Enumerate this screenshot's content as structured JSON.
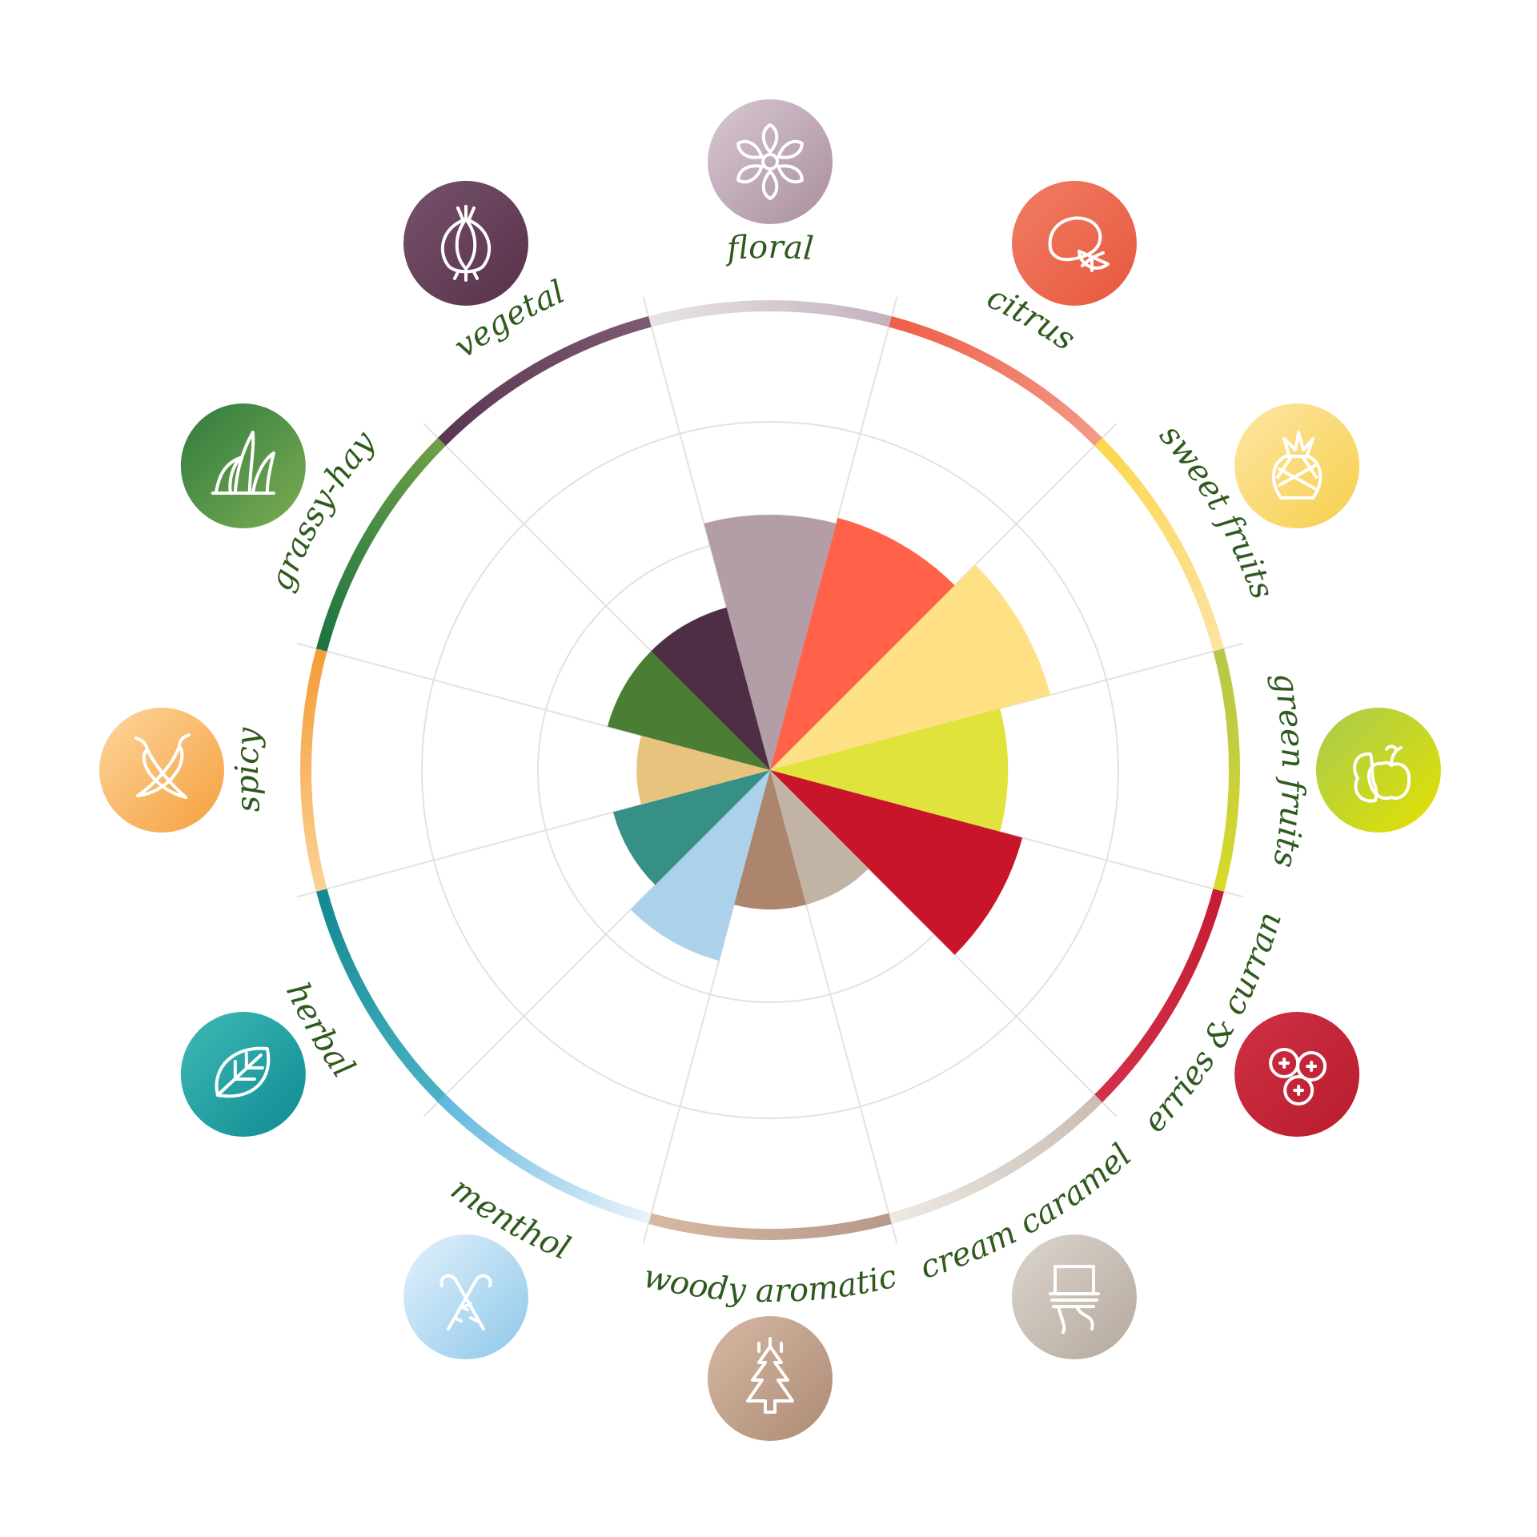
{
  "chart_data": {
    "type": "polar-area",
    "title": "",
    "radial_range": [
      0,
      4
    ],
    "grid": true,
    "categories": [
      {
        "key": "floral",
        "label": "floral",
        "value": 2.2,
        "color": "#b39ea8",
        "ring_colors": [
          "#e8e4e6",
          "#c4b1bf"
        ],
        "icon_colors": [
          "#d8c8d2",
          "#a98e9f"
        ],
        "icon": "flower-icon"
      },
      {
        "key": "citrus",
        "label": "citrus",
        "value": 2.25,
        "color": "#ff6248",
        "ring_colors": [
          "#ee5e48",
          "#f39a86"
        ],
        "icon_colors": [
          "#f07d63",
          "#e7583e"
        ],
        "icon": "lemon-icon"
      },
      {
        "key": "sweet_fruits",
        "label": "sweet fruits",
        "value": 2.5,
        "color": "#ffe085",
        "ring_colors": [
          "#fbd84e",
          "#fde2a4"
        ],
        "icon_colors": [
          "#fde6a4",
          "#f7cf4c"
        ],
        "icon": "pineapple-icon"
      },
      {
        "key": "green_fruits",
        "label": "green fruits",
        "value": 2.05,
        "color": "#e0e33b",
        "ring_colors": [
          "#b6c64a",
          "#d7da29"
        ],
        "icon_colors": [
          "#a8cb50",
          "#e3e100"
        ],
        "icon": "pear-apple-icon"
      },
      {
        "key": "berries_currant",
        "label": "berries & currant",
        "value": 2.25,
        "color": "#c9152a",
        "ring_colors": [
          "#c41d33",
          "#d4304a"
        ],
        "icon_colors": [
          "#cf3045",
          "#b81c2c"
        ],
        "icon": "berries-icon"
      },
      {
        "key": "cream_caramel",
        "label": "cream caramel",
        "value": 1.2,
        "color": "#c2b4a5",
        "ring_colors": [
          "#c9bdb3",
          "#ede9e3"
        ],
        "icon_colors": [
          "#dcd6cf",
          "#b4a89c"
        ],
        "icon": "cream-icon"
      },
      {
        "key": "woody_aromatic",
        "label": "woody aromatic",
        "value": 1.2,
        "color": "#ad856c",
        "ring_colors": [
          "#b6998a",
          "#d7b8a3"
        ],
        "icon_colors": [
          "#d5b8a4",
          "#ad8b75"
        ],
        "icon": "tree-icon"
      },
      {
        "key": "menthol",
        "label": "menthol",
        "value": 1.7,
        "color": "#acd1ea",
        "ring_colors": [
          "#eaf4fa",
          "#5fb6df"
        ],
        "icon_colors": [
          "#e3f1fb",
          "#8ec8ea"
        ],
        "icon": "candy-cane-icon"
      },
      {
        "key": "herbal",
        "label": "herbal",
        "value": 1.4,
        "color": "#369085",
        "ring_colors": [
          "#4cb3c6",
          "#11888f"
        ],
        "icon_colors": [
          "#3fbab6",
          "#0e8a92"
        ],
        "icon": "leaf-icon"
      },
      {
        "key": "spicy",
        "label": "spicy",
        "value": 1.15,
        "color": "#e8c37d",
        "ring_colors": [
          "#fbd293",
          "#f49c38"
        ],
        "icon_colors": [
          "#fdd69d",
          "#f59f3d"
        ],
        "icon": "chili-icon"
      },
      {
        "key": "grassy_hay",
        "label": "grassy-hay",
        "value": 1.45,
        "color": "#4a7e34",
        "ring_colors": [
          "#1a7342",
          "#6fa045"
        ],
        "icon_colors": [
          "#2f7b3f",
          "#7cac52"
        ],
        "icon": "grass-icon"
      },
      {
        "key": "vegetal",
        "label": "vegetal",
        "value": 1.45,
        "color": "#4e2e45",
        "ring_colors": [
          "#5a3651",
          "#7d5a72"
        ],
        "icon_colors": [
          "#76526c",
          "#583148"
        ],
        "icon": "onion-icon"
      }
    ]
  }
}
